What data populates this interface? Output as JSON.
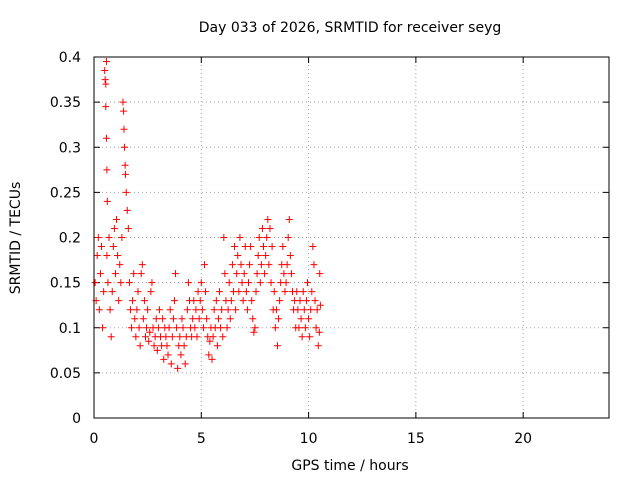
{
  "colors": {
    "points": "#ff0000",
    "axis": "#000000",
    "grid": "#a0a0a0",
    "background": "#ffffff"
  },
  "chart_data": {
    "type": "scatter",
    "marker": "plus",
    "title": "Day 033 of 2026, SRMTID for receiver seyg",
    "xlabel": "GPS time / hours",
    "ylabel": "SRMTID / TECUs",
    "xlim": [
      0,
      24
    ],
    "ylim": [
      0,
      0.4
    ],
    "xticks": [
      0,
      5,
      10,
      15,
      20
    ],
    "xtick_labels": [
      "0",
      "5",
      "10",
      "15",
      "20"
    ],
    "yticks": [
      0,
      0.05,
      0.1,
      0.15,
      0.2,
      0.25,
      0.3,
      0.35,
      0.4
    ],
    "ytick_labels": [
      "0",
      "0.05",
      "0.1",
      "0.15",
      "0.2",
      "0.25",
      "0.3",
      "0.35",
      "0.4"
    ],
    "grid": true,
    "series": [
      {
        "name": "SRMTID",
        "points": [
          [
            0.05,
            0.15
          ],
          [
            0.1,
            0.13
          ],
          [
            0.15,
            0.18
          ],
          [
            0.2,
            0.2
          ],
          [
            0.25,
            0.12
          ],
          [
            0.3,
            0.16
          ],
          [
            0.35,
            0.19
          ],
          [
            0.4,
            0.1
          ],
          [
            0.45,
            0.14
          ],
          [
            0.5,
            0.385
          ],
          [
            0.52,
            0.375
          ],
          [
            0.55,
            0.37
          ],
          [
            0.58,
            0.395
          ],
          [
            0.55,
            0.345
          ],
          [
            0.58,
            0.31
          ],
          [
            0.6,
            0.275
          ],
          [
            0.62,
            0.24
          ],
          [
            0.6,
            0.18
          ],
          [
            0.65,
            0.15
          ],
          [
            0.7,
            0.2
          ],
          [
            0.75,
            0.12
          ],
          [
            0.8,
            0.09
          ],
          [
            0.85,
            0.14
          ],
          [
            0.9,
            0.19
          ],
          [
            0.95,
            0.21
          ],
          [
            1.0,
            0.16
          ],
          [
            1.05,
            0.22
          ],
          [
            1.1,
            0.18
          ],
          [
            1.15,
            0.13
          ],
          [
            1.2,
            0.17
          ],
          [
            1.25,
            0.15
          ],
          [
            1.3,
            0.2
          ],
          [
            1.35,
            0.35
          ],
          [
            1.38,
            0.34
          ],
          [
            1.4,
            0.32
          ],
          [
            1.42,
            0.3
          ],
          [
            1.45,
            0.28
          ],
          [
            1.47,
            0.27
          ],
          [
            1.5,
            0.25
          ],
          [
            1.55,
            0.23
          ],
          [
            1.6,
            0.21
          ],
          [
            1.65,
            0.15
          ],
          [
            1.7,
            0.12
          ],
          [
            1.75,
            0.1
          ],
          [
            1.8,
            0.13
          ],
          [
            1.85,
            0.16
          ],
          [
            1.9,
            0.11
          ],
          [
            1.95,
            0.09
          ],
          [
            2.0,
            0.12
          ],
          [
            2.05,
            0.14
          ],
          [
            2.1,
            0.1
          ],
          [
            2.15,
            0.08
          ],
          [
            2.2,
            0.16
          ],
          [
            2.25,
            0.17
          ],
          [
            2.3,
            0.11
          ],
          [
            2.35,
            0.13
          ],
          [
            2.4,
            0.09
          ],
          [
            2.45,
            0.1
          ],
          [
            2.5,
            0.12
          ],
          [
            2.55,
            0.085
          ],
          [
            2.6,
            0.095
          ],
          [
            2.65,
            0.14
          ],
          [
            2.7,
            0.15
          ],
          [
            2.75,
            0.1
          ],
          [
            2.8,
            0.08
          ],
          [
            2.85,
            0.09
          ],
          [
            2.9,
            0.11
          ],
          [
            2.95,
            0.075
          ],
          [
            3.0,
            0.1
          ],
          [
            3.05,
            0.12
          ],
          [
            3.1,
            0.09
          ],
          [
            3.15,
            0.08
          ],
          [
            3.2,
            0.11
          ],
          [
            3.25,
            0.065
          ],
          [
            3.3,
            0.1
          ],
          [
            3.35,
            0.09
          ],
          [
            3.4,
            0.08
          ],
          [
            3.45,
            0.07
          ],
          [
            3.5,
            0.1
          ],
          [
            3.55,
            0.12
          ],
          [
            3.6,
            0.06
          ],
          [
            3.65,
            0.09
          ],
          [
            3.7,
            0.11
          ],
          [
            3.75,
            0.13
          ],
          [
            3.8,
            0.16
          ],
          [
            3.85,
            0.1
          ],
          [
            3.9,
            0.055
          ],
          [
            3.95,
            0.08
          ],
          [
            4.0,
            0.09
          ],
          [
            4.05,
            0.07
          ],
          [
            4.1,
            0.11
          ],
          [
            4.15,
            0.1
          ],
          [
            4.2,
            0.08
          ],
          [
            4.25,
            0.06
          ],
          [
            4.3,
            0.09
          ],
          [
            4.35,
            0.12
          ],
          [
            4.4,
            0.15
          ],
          [
            4.45,
            0.13
          ],
          [
            4.5,
            0.1
          ],
          [
            4.55,
            0.09
          ],
          [
            4.6,
            0.11
          ],
          [
            4.65,
            0.13
          ],
          [
            4.7,
            0.1
          ],
          [
            4.75,
            0.12
          ],
          [
            4.8,
            0.09
          ],
          [
            4.85,
            0.14
          ],
          [
            4.9,
            0.11
          ],
          [
            4.95,
            0.13
          ],
          [
            5.0,
            0.15
          ],
          [
            5.05,
            0.12
          ],
          [
            5.1,
            0.1
          ],
          [
            5.15,
            0.17
          ],
          [
            5.2,
            0.14
          ],
          [
            5.25,
            0.11
          ],
          [
            5.3,
            0.09
          ],
          [
            5.35,
            0.07
          ],
          [
            5.4,
            0.085
          ],
          [
            5.45,
            0.1
          ],
          [
            5.5,
            0.065
          ],
          [
            5.55,
            0.09
          ],
          [
            5.6,
            0.12
          ],
          [
            5.65,
            0.1
          ],
          [
            5.7,
            0.13
          ],
          [
            5.75,
            0.08
          ],
          [
            5.8,
            0.11
          ],
          [
            5.85,
            0.14
          ],
          [
            5.9,
            0.1
          ],
          [
            5.95,
            0.12
          ],
          [
            6.0,
            0.09
          ],
          [
            6.05,
            0.2
          ],
          [
            6.1,
            0.16
          ],
          [
            6.15,
            0.13
          ],
          [
            6.2,
            0.1
          ],
          [
            6.25,
            0.12
          ],
          [
            6.3,
            0.15
          ],
          [
            6.35,
            0.11
          ],
          [
            6.4,
            0.13
          ],
          [
            6.45,
            0.17
          ],
          [
            6.5,
            0.14
          ],
          [
            6.55,
            0.19
          ],
          [
            6.6,
            0.12
          ],
          [
            6.65,
            0.16
          ],
          [
            6.7,
            0.18
          ],
          [
            6.75,
            0.14
          ],
          [
            6.8,
            0.2
          ],
          [
            6.85,
            0.17
          ],
          [
            6.9,
            0.15
          ],
          [
            6.95,
            0.13
          ],
          [
            7.0,
            0.16
          ],
          [
            7.05,
            0.19
          ],
          [
            7.1,
            0.14
          ],
          [
            7.15,
            0.12
          ],
          [
            7.2,
            0.15
          ],
          [
            7.25,
            0.17
          ],
          [
            7.3,
            0.19
          ],
          [
            7.35,
            0.13
          ],
          [
            7.4,
            0.11
          ],
          [
            7.45,
            0.095
          ],
          [
            7.5,
            0.1
          ],
          [
            7.55,
            0.14
          ],
          [
            7.6,
            0.16
          ],
          [
            7.65,
            0.18
          ],
          [
            7.7,
            0.2
          ],
          [
            7.75,
            0.15
          ],
          [
            7.8,
            0.17
          ],
          [
            7.85,
            0.21
          ],
          [
            7.9,
            0.19
          ],
          [
            7.95,
            0.16
          ],
          [
            8.0,
            0.18
          ],
          [
            8.05,
            0.2
          ],
          [
            8.1,
            0.22
          ],
          [
            8.15,
            0.17
          ],
          [
            8.2,
            0.21
          ],
          [
            8.25,
            0.15
          ],
          [
            8.3,
            0.19
          ],
          [
            8.35,
            0.12
          ],
          [
            8.4,
            0.14
          ],
          [
            8.45,
            0.1
          ],
          [
            8.5,
            0.12
          ],
          [
            8.55,
            0.08
          ],
          [
            8.6,
            0.11
          ],
          [
            8.65,
            0.13
          ],
          [
            8.7,
            0.15
          ],
          [
            8.75,
            0.17
          ],
          [
            8.8,
            0.19
          ],
          [
            8.85,
            0.16
          ],
          [
            8.9,
            0.14
          ],
          [
            8.95,
            0.15
          ],
          [
            9.0,
            0.17
          ],
          [
            9.05,
            0.2
          ],
          [
            9.1,
            0.22
          ],
          [
            9.15,
            0.18
          ],
          [
            9.2,
            0.16
          ],
          [
            9.25,
            0.14
          ],
          [
            9.3,
            0.12
          ],
          [
            9.35,
            0.13
          ],
          [
            9.4,
            0.1
          ],
          [
            9.45,
            0.14
          ],
          [
            9.5,
            0.12
          ],
          [
            9.55,
            0.1
          ],
          [
            9.6,
            0.13
          ],
          [
            9.65,
            0.11
          ],
          [
            9.7,
            0.09
          ],
          [
            9.75,
            0.14
          ],
          [
            9.8,
            0.12
          ],
          [
            9.85,
            0.1
          ],
          [
            9.9,
            0.13
          ],
          [
            9.95,
            0.15
          ],
          [
            10.0,
            0.11
          ],
          [
            10.05,
            0.09
          ],
          [
            10.1,
            0.12
          ],
          [
            10.15,
            0.14
          ],
          [
            10.2,
            0.19
          ],
          [
            10.25,
            0.17
          ],
          [
            10.3,
            0.13
          ],
          [
            10.35,
            0.1
          ],
          [
            10.4,
            0.12
          ],
          [
            10.45,
            0.08
          ],
          [
            10.5,
            0.095
          ],
          [
            10.52,
            0.16
          ],
          [
            10.55,
            0.125
          ]
        ]
      }
    ]
  }
}
